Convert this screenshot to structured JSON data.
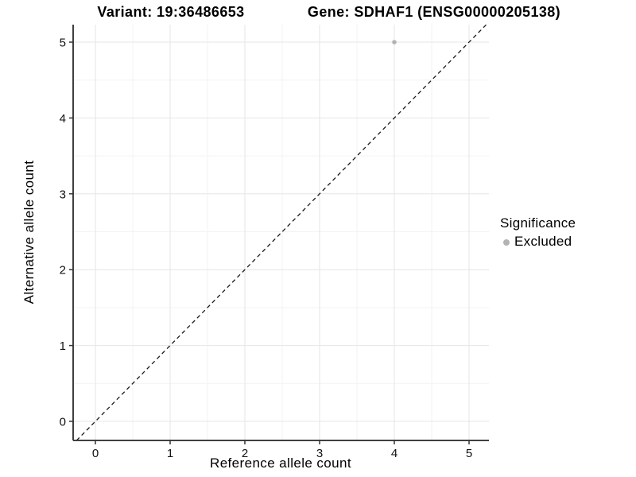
{
  "chart_data": {
    "type": "scatter",
    "titles": [
      "Variant: 19:36486653",
      "Gene: SDHAF1 (ENSG00000205138)"
    ],
    "xlabel": "Reference allele count",
    "ylabel": "Alternative allele count",
    "x_ticks": [
      0,
      1,
      2,
      3,
      4,
      5
    ],
    "y_ticks": [
      0,
      1,
      2,
      3,
      4,
      5
    ],
    "xlim": [
      -0.3,
      5.27
    ],
    "ylim": [
      -0.25,
      5.23
    ],
    "grid": {
      "major": true,
      "minor": true
    },
    "series": [
      {
        "name": "Excluded",
        "color": "#b3b3b3",
        "points": [
          [
            4,
            5
          ]
        ]
      }
    ],
    "reference_line": {
      "type": "identity",
      "style": "dashed",
      "color": "#1a1a1a"
    },
    "legend": {
      "title": "Significance",
      "position": "right",
      "entries": [
        {
          "label": "Excluded",
          "color": "#b3b3b3"
        }
      ]
    }
  },
  "colors": {
    "background": "#ffffff",
    "grid_major": "#e6e6e6",
    "grid_minor": "#f3f3f3",
    "axis_line": "#404040",
    "tick_mark": "#333333",
    "tick_label": "#111111",
    "point": "#b3b3b3"
  }
}
